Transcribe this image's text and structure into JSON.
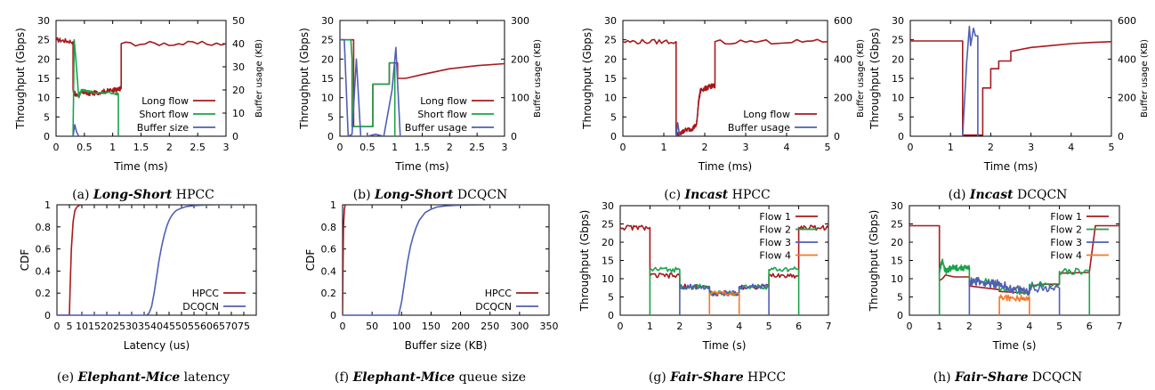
{
  "colors": {
    "red": "#a8191c",
    "green": "#1aa34a",
    "blue": "#4f5fb3",
    "orange": "#f4782a",
    "axis": "#000000"
  },
  "chart_data": [
    {
      "id": "a",
      "type": "line",
      "caption": {
        "label": "(a) ",
        "em": "Long-Short",
        "rest": " HPCC"
      },
      "xlabel": "Time (ms)",
      "ylabel": "Throughput (Gbps)",
      "y2label": "Buffer usage (KB)",
      "xlim": [
        0,
        3
      ],
      "ylim": [
        0,
        30
      ],
      "y2lim": [
        0,
        50
      ],
      "xticks": [
        "0",
        "0.5",
        "1",
        "1.5",
        "2",
        "2.5",
        "3"
      ],
      "yticks": [
        "0",
        "5",
        "10",
        "15",
        "20",
        "25",
        "30"
      ],
      "y2ticks": [
        "0",
        "10",
        "20",
        "30",
        "40",
        "50"
      ],
      "legend": {
        "position": "right",
        "entries": [
          "Long flow",
          "Short flow",
          "Buffer size"
        ]
      },
      "series": [
        {
          "name": "Long flow",
          "color": "red",
          "axis": "y",
          "noise": 0.6,
          "x": [
            0,
            0.3,
            0.3,
            0.35,
            0.5,
            0.6,
            0.8,
            1.0,
            1.1,
            1.15,
            1.15,
            3
          ],
          "y": [
            25,
            24.5,
            12,
            10.5,
            11.5,
            11,
            11.5,
            12,
            12,
            12.5,
            24,
            24
          ]
        },
        {
          "name": "Short flow",
          "color": "green",
          "axis": "y",
          "noise": 0.3,
          "x": [
            0.3,
            0.32,
            0.35,
            0.4,
            0.45,
            0.6,
            1.05,
            1.1,
            1.1
          ],
          "y": [
            0,
            25,
            20,
            10,
            12,
            11.5,
            11,
            11,
            0
          ]
        },
        {
          "name": "Buffer size",
          "color": "blue",
          "axis": "y2",
          "x": [
            0.3,
            0.33,
            0.36,
            0.4
          ],
          "y": [
            0,
            5,
            2,
            0
          ]
        }
      ]
    },
    {
      "id": "b",
      "type": "line",
      "caption": {
        "label": "(b) ",
        "em": "Long-Short",
        "rest": " DCQCN"
      },
      "xlabel": "Time (ms)",
      "ylabel": "Throughput (Gbps)",
      "y2label": "Buffer usage (KB)",
      "xlim": [
        0,
        3
      ],
      "ylim": [
        0,
        30
      ],
      "y2lim": [
        0,
        300
      ],
      "xticks": [
        "0",
        "0.5",
        "1",
        "1.5",
        "2",
        "2.5",
        "3"
      ],
      "yticks": [
        "0",
        "5",
        "10",
        "15",
        "20",
        "25",
        "30"
      ],
      "y2ticks": [
        "0",
        "100",
        "200",
        "300"
      ],
      "legend": {
        "position": "right",
        "entries": [
          "Long flow",
          "Short flow",
          "Buffer usage"
        ]
      },
      "series": [
        {
          "name": "Long flow",
          "color": "red",
          "axis": "y",
          "x": [
            0,
            0.25,
            0.25,
            0.6,
            0.6,
            0.9,
            0.9,
            1.05,
            1.05,
            1.2,
            1.5,
            2.0,
            2.5,
            3
          ],
          "y": [
            25,
            25,
            2.5,
            2.5,
            13.5,
            13.5,
            19,
            19,
            15,
            15,
            16,
            17.5,
            18.3,
            18.8
          ]
        },
        {
          "name": "Short flow",
          "color": "green",
          "axis": "y",
          "x": [
            0,
            0.2,
            0.22,
            0.22,
            0.6,
            0.6,
            0.9,
            0.9,
            1.0,
            1.0
          ],
          "y": [
            25,
            25,
            20,
            2.5,
            2.5,
            13.5,
            13.5,
            19,
            19,
            0
          ]
        },
        {
          "name": "Buffer usage",
          "color": "blue",
          "axis": "y2",
          "x": [
            0,
            0.08,
            0.15,
            0.22,
            0.3,
            0.38,
            0.5,
            0.65,
            0.8,
            0.95,
            1.02,
            1.1,
            1.15
          ],
          "y": [
            250,
            250,
            0,
            5,
            200,
            0,
            0,
            5,
            0,
            120,
            230,
            0,
            0
          ]
        }
      ]
    },
    {
      "id": "c",
      "type": "line",
      "caption": {
        "label": "(c) ",
        "em": "Incast",
        "rest": " HPCC"
      },
      "xlabel": "Time (ms)",
      "ylabel": "Throughput (Gbps)",
      "y2label": "Buffer usage (KB)",
      "xlim": [
        0,
        5
      ],
      "ylim": [
        0,
        30
      ],
      "y2lim": [
        0,
        600
      ],
      "xticks": [
        "0",
        "1",
        "2",
        "3",
        "4",
        "5"
      ],
      "yticks": [
        "0",
        "5",
        "10",
        "15",
        "20",
        "25",
        "30"
      ],
      "y2ticks": [
        "0",
        "200",
        "400",
        "600"
      ],
      "legend": {
        "position": "right",
        "entries": [
          "Long flow",
          "Buffer usage"
        ]
      },
      "series": [
        {
          "name": "Long flow",
          "color": "red",
          "axis": "y",
          "noise": 0.6,
          "x": [
            0,
            1.3,
            1.3,
            1.4,
            1.5,
            1.7,
            1.8,
            1.85,
            1.9,
            2.05,
            2.15,
            2.25,
            2.25,
            5
          ],
          "y": [
            24.5,
            24.5,
            0.5,
            0.5,
            1.5,
            2,
            3,
            9,
            12,
            12.5,
            13,
            13,
            24.5,
            24.5
          ]
        },
        {
          "name": "Buffer usage",
          "color": "blue",
          "axis": "y2",
          "x": [
            1.3,
            1.34,
            1.38,
            1.42
          ],
          "y": [
            0,
            70,
            10,
            0
          ]
        }
      ]
    },
    {
      "id": "d",
      "type": "line",
      "caption": {
        "label": "(d) ",
        "em": "Incast",
        "rest": " DCQCN"
      },
      "xlabel": "Time (ms)",
      "ylabel": "Throughput (Gbps)",
      "y2label": "Buffer usage (KB)",
      "xlim": [
        0,
        5
      ],
      "ylim": [
        0,
        30
      ],
      "y2lim": [
        0,
        600
      ],
      "xticks": [
        "0",
        "1",
        "2",
        "3",
        "4",
        "5"
      ],
      "yticks": [
        "0",
        "5",
        "10",
        "15",
        "20",
        "25",
        "30"
      ],
      "y2ticks": [
        "0",
        "200",
        "400",
        "600"
      ],
      "legend": {
        "position": "none",
        "entries": []
      },
      "series": [
        {
          "name": "",
          "color": "red",
          "axis": "y",
          "x": [
            0,
            1.3,
            1.3,
            1.8,
            1.8,
            2.0,
            2.0,
            2.2,
            2.2,
            2.5,
            2.5,
            3,
            3.5,
            4,
            4.5,
            5
          ],
          "y": [
            24.7,
            24.7,
            0.3,
            0.3,
            12.5,
            12.5,
            17.5,
            17.5,
            19.5,
            19.5,
            22,
            23,
            23.5,
            24,
            24.3,
            24.5
          ]
        },
        {
          "name": "",
          "color": "blue",
          "axis": "y2",
          "x": [
            1.3,
            1.4,
            1.47,
            1.5,
            1.57,
            1.62,
            1.68,
            1.68
          ],
          "y": [
            0,
            380,
            570,
            470,
            560,
            520,
            520,
            0
          ]
        }
      ]
    },
    {
      "id": "e",
      "type": "line",
      "caption": {
        "label": "(e) ",
        "em": "Elephant-Mice",
        "rest": " latency"
      },
      "xlabel": "Latency (us)",
      "ylabel": "CDF",
      "xlim": [
        0,
        80
      ],
      "ylim": [
        0,
        1
      ],
      "xticks": [
        "0",
        "5",
        "10",
        "15",
        "20",
        "25",
        "30",
        "35",
        "40",
        "45",
        "50",
        "55",
        "60",
        "65",
        "70",
        "75"
      ],
      "yticks": [
        "0",
        "0.2",
        "0.4",
        "0.6",
        "0.8",
        "1"
      ],
      "legend": {
        "position": "right",
        "entries": [
          "HPCC",
          "DCQCN"
        ]
      },
      "series": [
        {
          "name": "HPCC",
          "color": "red",
          "axis": "y",
          "x": [
            0,
            5,
            5.3,
            5.8,
            6.5,
            7.2,
            8,
            9,
            10
          ],
          "y": [
            0,
            0,
            0.25,
            0.6,
            0.85,
            0.95,
            0.98,
            0.995,
            1
          ]
        },
        {
          "name": "DCQCN",
          "color": "blue",
          "axis": "y",
          "x": [
            0,
            36,
            37,
            38,
            39,
            40,
            41,
            42,
            43,
            44,
            45,
            46,
            47,
            48,
            50,
            52,
            55,
            60,
            65,
            75
          ],
          "y": [
            0,
            0,
            0.02,
            0.08,
            0.2,
            0.35,
            0.5,
            0.62,
            0.72,
            0.8,
            0.86,
            0.9,
            0.93,
            0.95,
            0.97,
            0.985,
            0.993,
            0.998,
            1,
            1
          ]
        }
      ]
    },
    {
      "id": "f",
      "type": "line",
      "caption": {
        "label": "(f) ",
        "em": "Elephant-Mice",
        "rest": " queue size"
      },
      "xlabel": "Buffer size (KB)",
      "ylabel": "CDF",
      "xlim": [
        0,
        350
      ],
      "ylim": [
        0,
        1
      ],
      "xticks": [
        "0",
        "50",
        "100",
        "150",
        "200",
        "250",
        "300",
        "350"
      ],
      "yticks": [
        "0",
        "0.2",
        "0.4",
        "0.6",
        "0.8",
        "1"
      ],
      "legend": {
        "position": "right",
        "entries": [
          "HPCC",
          "DCQCN"
        ]
      },
      "series": [
        {
          "name": "HPCC",
          "color": "red",
          "axis": "y",
          "x": [
            0,
            0.5,
            1.5,
            3,
            4,
            5
          ],
          "y": [
            0,
            0.3,
            0.8,
            0.96,
            0.99,
            1
          ]
        },
        {
          "name": "DCQCN",
          "color": "blue",
          "axis": "y",
          "x": [
            0,
            95,
            100,
            105,
            110,
            115,
            120,
            125,
            130,
            140,
            150,
            160,
            175,
            200,
            250,
            305
          ],
          "y": [
            0,
            0,
            0.12,
            0.3,
            0.48,
            0.62,
            0.72,
            0.8,
            0.86,
            0.93,
            0.96,
            0.98,
            0.99,
            0.997,
            1,
            1
          ]
        }
      ]
    },
    {
      "id": "g",
      "type": "line",
      "caption": {
        "label": "(g) ",
        "em": "Fair-Share",
        "rest": " HPCC"
      },
      "xlabel": "Time (s)",
      "ylabel": "Throughput (Gbps)",
      "xlim": [
        0,
        7
      ],
      "ylim": [
        0,
        30
      ],
      "xticks": [
        "0",
        "1",
        "2",
        "3",
        "4",
        "5",
        "6",
        "7"
      ],
      "yticks": [
        "0",
        "5",
        "10",
        "15",
        "20",
        "25",
        "30"
      ],
      "legend": {
        "position": "top-right",
        "entries": [
          "Flow 1",
          "Flow 2",
          "Flow 3",
          "Flow 4"
        ]
      },
      "series": [
        {
          "name": "Flow 1",
          "color": "red",
          "axis": "y",
          "noise": 0.7,
          "x": [
            0,
            1,
            1,
            2,
            2,
            3,
            3,
            4,
            4,
            5,
            5,
            6,
            6,
            7
          ],
          "y": [
            24,
            24,
            10.8,
            10.8,
            7.8,
            7.8,
            6,
            6,
            7.8,
            7.8,
            10.8,
            10.8,
            24,
            24
          ]
        },
        {
          "name": "Flow 2",
          "color": "green",
          "axis": "y",
          "noise": 0.7,
          "x": [
            1,
            1,
            2,
            2,
            3,
            3,
            4,
            4,
            5,
            5,
            6,
            6
          ],
          "y": [
            0,
            12.5,
            12.5,
            7.8,
            7.8,
            6,
            6,
            7.8,
            7.8,
            12.5,
            12.5,
            0
          ]
        },
        {
          "name": "Flow 3",
          "color": "blue",
          "axis": "y",
          "noise": 0.7,
          "x": [
            2,
            2,
            3,
            3,
            4,
            4,
            5,
            5
          ],
          "y": [
            0,
            7.8,
            7.8,
            6,
            6,
            7.8,
            7.8,
            0
          ]
        },
        {
          "name": "Flow 4",
          "color": "orange",
          "axis": "y",
          "noise": 0.5,
          "x": [
            3,
            3,
            4,
            4
          ],
          "y": [
            0,
            6,
            6,
            0
          ]
        }
      ]
    },
    {
      "id": "h",
      "type": "line",
      "caption": {
        "label": "(h) ",
        "em": "Fair-Share",
        "rest": " DCQCN"
      },
      "xlabel": "Time (s)",
      "ylabel": "Throughput (Gbps)",
      "xlim": [
        0,
        7
      ],
      "ylim": [
        0,
        30
      ],
      "xticks": [
        "0",
        "1",
        "2",
        "3",
        "4",
        "5",
        "6",
        "7"
      ],
      "yticks": [
        "0",
        "5",
        "10",
        "15",
        "20",
        "25",
        "30"
      ],
      "legend": {
        "position": "top-right",
        "entries": [
          "Flow 1",
          "Flow 2",
          "Flow 3",
          "Flow 4"
        ]
      },
      "series": [
        {
          "name": "Flow 1",
          "color": "red",
          "axis": "y",
          "x": [
            0,
            1,
            1,
            1.1,
            1.2,
            1.5,
            2,
            2,
            3,
            3,
            4,
            4,
            4.5,
            5,
            5,
            6,
            6,
            6.2,
            7
          ],
          "y": [
            24.5,
            24.5,
            9.5,
            10,
            11,
            10.5,
            10.5,
            8,
            7,
            6.5,
            6,
            8,
            8.5,
            8.5,
            11.5,
            11.7,
            12,
            24.5,
            24.5
          ]
        },
        {
          "name": "Flow 2",
          "color": "green",
          "axis": "y",
          "noise": 0.8,
          "x": [
            1,
            1,
            1.1,
            1.2,
            1.4,
            1.7,
            2,
            2,
            3,
            3,
            4,
            4,
            5,
            5,
            6,
            6
          ],
          "y": [
            0,
            12,
            15,
            12,
            13,
            13,
            13,
            9.5,
            9,
            7,
            6,
            8.5,
            8.5,
            12,
            12,
            0
          ]
        },
        {
          "name": "Flow 3",
          "color": "blue",
          "axis": "y",
          "noise": 1.2,
          "x": [
            2,
            2,
            2.5,
            3,
            3,
            3.5,
            4,
            4,
            5,
            5
          ],
          "y": [
            0,
            9.5,
            9,
            8.5,
            8.5,
            7,
            6.5,
            7.5,
            7.5,
            0
          ]
        },
        {
          "name": "Flow 4",
          "color": "orange",
          "axis": "y",
          "noise": 0.8,
          "x": [
            3,
            3,
            3.5,
            4,
            4
          ],
          "y": [
            0,
            5,
            4.5,
            5,
            0
          ]
        }
      ]
    }
  ]
}
